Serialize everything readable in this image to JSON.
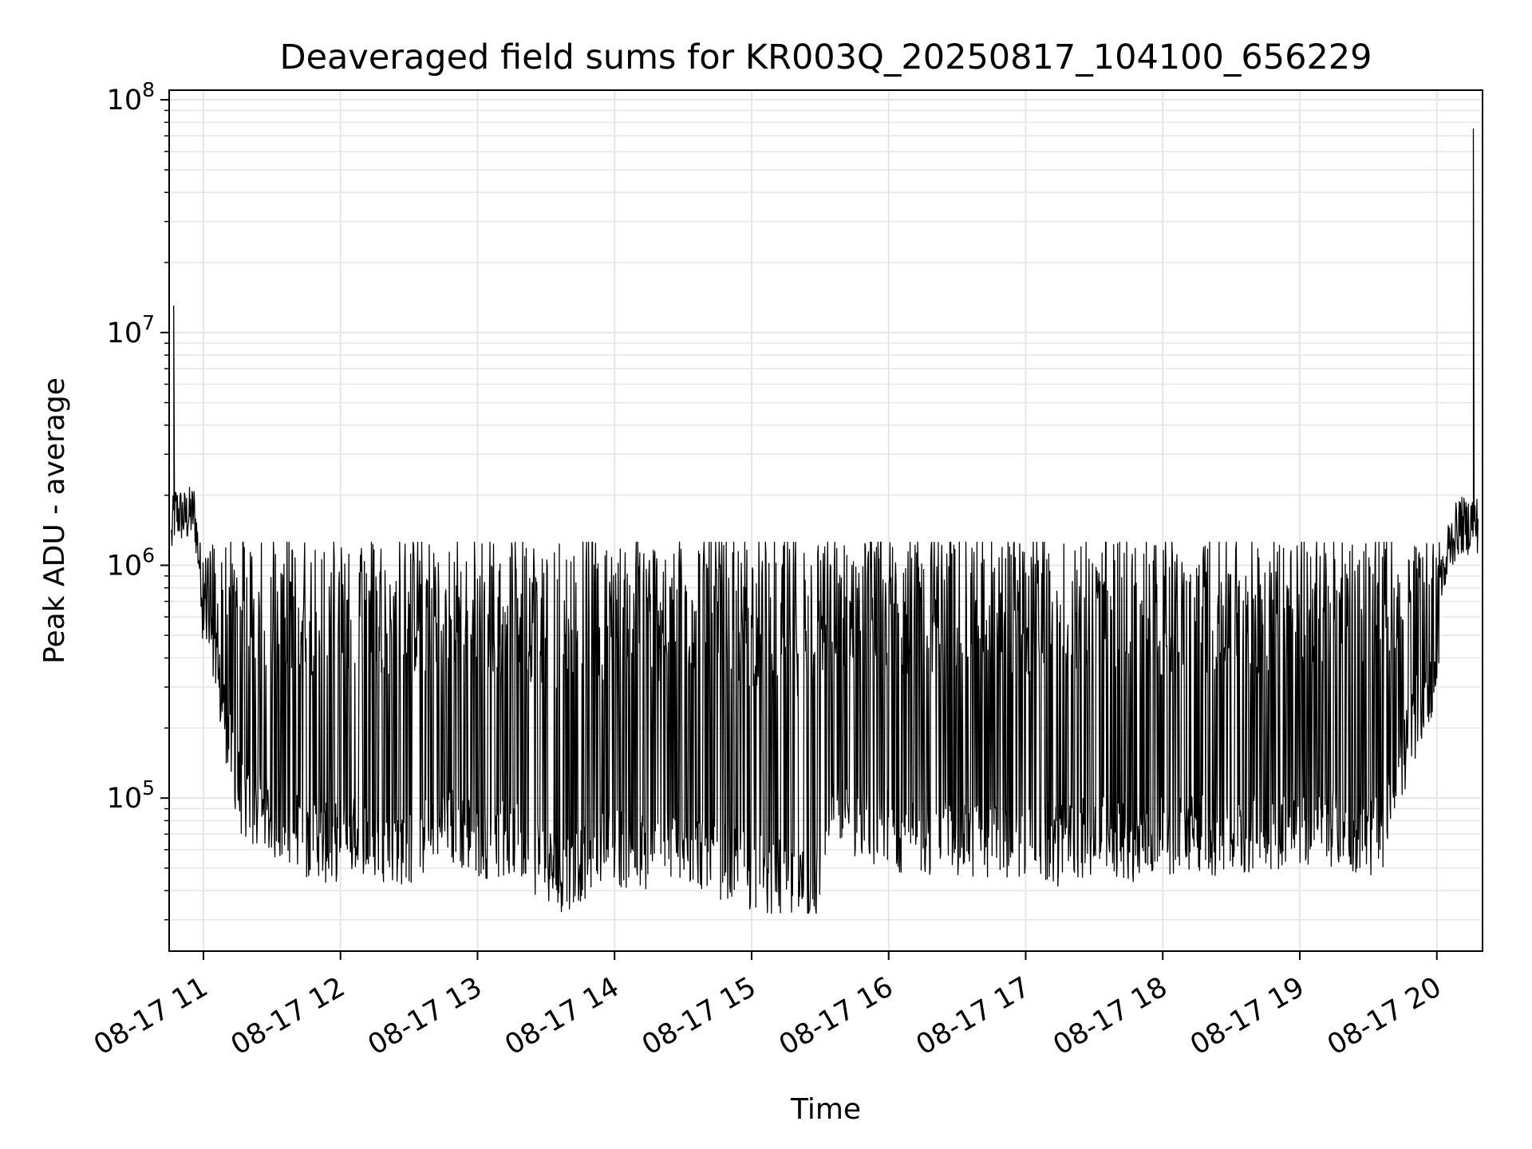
{
  "chart_data": {
    "type": "line",
    "title": "Deaveraged field sums for KR003Q_20250817_104100_656229",
    "xlabel": "Time",
    "ylabel": "Peak ADU - average",
    "yscale": "log",
    "grid": true,
    "line_color": "#000000",
    "grid_color": "#e6e6e6",
    "xlim": [
      "2025-08-17 10:45",
      "2025-08-17 20:20"
    ],
    "ylim": [
      22000,
      110000000
    ],
    "x_ticks": [
      {
        "t": "2025-08-17 11:00",
        "label": "08-17 11"
      },
      {
        "t": "2025-08-17 12:00",
        "label": "08-17 12"
      },
      {
        "t": "2025-08-17 13:00",
        "label": "08-17 13"
      },
      {
        "t": "2025-08-17 14:00",
        "label": "08-17 14"
      },
      {
        "t": "2025-08-17 15:00",
        "label": "08-17 15"
      },
      {
        "t": "2025-08-17 16:00",
        "label": "08-17 16"
      },
      {
        "t": "2025-08-17 17:00",
        "label": "08-17 17"
      },
      {
        "t": "2025-08-17 18:00",
        "label": "08-17 18"
      },
      {
        "t": "2025-08-17 19:00",
        "label": "08-17 19"
      },
      {
        "t": "2025-08-17 20:00",
        "label": "08-17 20"
      }
    ],
    "y_ticks": [
      {
        "v": 100000,
        "base": "10",
        "exp": "5"
      },
      {
        "v": 1000000,
        "base": "10",
        "exp": "6"
      },
      {
        "v": 10000000,
        "base": "10",
        "exp": "7"
      },
      {
        "v": 100000000,
        "base": "10",
        "exp": "8"
      }
    ],
    "series": [
      {
        "x": [
          "2025-08-17 10:46",
          "2025-08-17 10:47",
          "2025-08-17 10:48",
          "2025-08-17 10:52",
          "2025-08-17 10:56",
          "2025-08-17 11:00",
          "2025-08-17 11:03",
          "2025-08-17 11:06",
          "2025-08-17 11:09",
          "2025-08-17 11:12",
          "2025-08-17 11:16",
          "2025-08-17 11:20",
          "2025-08-17 11:25",
          "2025-08-17 11:30",
          "2025-08-17 11:35",
          "2025-08-17 11:40",
          "2025-08-17 11:45",
          "2025-08-17 11:50",
          "2025-08-17 11:55",
          "2025-08-17 12:00",
          "2025-08-17 12:10",
          "2025-08-17 12:20",
          "2025-08-17 12:30",
          "2025-08-17 12:37",
          "2025-08-17 12:45",
          "2025-08-17 12:55",
          "2025-08-17 13:05",
          "2025-08-17 13:15",
          "2025-08-17 13:25",
          "2025-08-17 13:35",
          "2025-08-17 13:40",
          "2025-08-17 13:50",
          "2025-08-17 14:00",
          "2025-08-17 14:10",
          "2025-08-17 14:20",
          "2025-08-17 14:30",
          "2025-08-17 14:40",
          "2025-08-17 14:50",
          "2025-08-17 15:00",
          "2025-08-17 15:10",
          "2025-08-17 15:20",
          "2025-08-17 15:28",
          "2025-08-17 15:35",
          "2025-08-17 15:45",
          "2025-08-17 15:55",
          "2025-08-17 16:05",
          "2025-08-17 16:15",
          "2025-08-17 16:25",
          "2025-08-17 16:35",
          "2025-08-17 16:45",
          "2025-08-17 16:55",
          "2025-08-17 17:05",
          "2025-08-17 17:15",
          "2025-08-17 17:25",
          "2025-08-17 17:35",
          "2025-08-17 17:45",
          "2025-08-17 17:55",
          "2025-08-17 18:05",
          "2025-08-17 18:15",
          "2025-08-17 18:25",
          "2025-08-17 18:35",
          "2025-08-17 18:45",
          "2025-08-17 18:55",
          "2025-08-17 19:05",
          "2025-08-17 19:15",
          "2025-08-17 19:25",
          "2025-08-17 19:35",
          "2025-08-17 19:45",
          "2025-08-17 19:50",
          "2025-08-17 19:55",
          "2025-08-17 20:00",
          "2025-08-17 20:05",
          "2025-08-17 20:10",
          "2025-08-17 20:13",
          "2025-08-17 20:14",
          "2025-08-17 20:15",
          "2025-08-17 20:16",
          "2025-08-17 20:17",
          "2025-08-17 20:18"
        ],
        "y": [
          1300000,
          1600000,
          1700000,
          1600000,
          1700000,
          700000,
          500000,
          350000,
          250000,
          170000,
          110000,
          95000,
          90000,
          85000,
          80000,
          75000,
          70000,
          72000,
          65000,
          70000,
          72000,
          68000,
          65000,
          70000,
          80000,
          75000,
          70000,
          72000,
          60000,
          50000,
          52000,
          60000,
          65000,
          62000,
          60000,
          65000,
          62000,
          55000,
          50000,
          48000,
          45000,
          45000,
          85000,
          85000,
          80000,
          75000,
          72000,
          75000,
          70000,
          72000,
          65000,
          68000,
          65000,
          70000,
          72000,
          68000,
          70000,
          72000,
          75000,
          70000,
          72000,
          75000,
          80000,
          75000,
          80000,
          75000,
          70000,
          150000,
          220000,
          300000,
          400000,
          1200000,
          1500000,
          1450000,
          1500000,
          1550000,
          1600000,
          1500000,
          1500000
        ],
        "peak_x": [
          "2025-08-17 10:47",
          "2025-08-17 20:16"
        ],
        "peak_y": [
          13000000,
          75000000
        ],
        "band_upper": 1200000,
        "band_lower_min": 32000
      }
    ]
  }
}
